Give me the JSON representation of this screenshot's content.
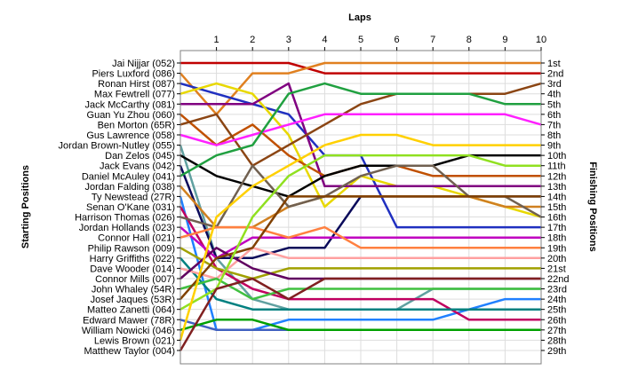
{
  "chart_data": {
    "type": "line",
    "title": "Laps",
    "ylabel_left": "Starting Positions",
    "ylabel_right": "Finishing Positions",
    "x": [
      0,
      1,
      2,
      3,
      4,
      5,
      6,
      7,
      8,
      9,
      10
    ],
    "laps": [
      "1",
      "2",
      "3",
      "4",
      "5",
      "6",
      "7",
      "8",
      "9",
      "10"
    ],
    "ylim": [
      1,
      29
    ],
    "grid": true,
    "drivers": [
      "Jai Nijjar (052)",
      "Piers Luxford (086)",
      "Ronan Hirst (087)",
      "Max Fewtrell (077)",
      "Jack McCarthy (081)",
      "Guan Yu Zhou (060)",
      "Ben Morton (65R)",
      "Gus Lawrence (058)",
      "Jordan Brown-Nutley (055)",
      "Dan Zelos (045)",
      "Jack Evans (042)",
      "Daniel McAuley (041)",
      "Jordan Falding (038)",
      "Ty Newstead (27R)",
      "Senan O'Kane (031)",
      "Harrison Thomas (026)",
      "Jordan Hollands (023)",
      "Connor Hall (021)",
      "Philip Rawson (009)",
      "Harry Griffiths (022)",
      "Dave Wooder (014)",
      "Connor Mills (007)",
      "John Whaley (54R)",
      "Josef Jaques (53R)",
      "Matteo Zanetti (064)",
      "Edward Mawer (78R)",
      "William Nowicki (046)",
      "Lewis Brown (021)",
      "Matthew Taylor (004)"
    ],
    "finish_labels": [
      "1st",
      "2nd",
      "3rd",
      "4th",
      "5th",
      "6th",
      "7th",
      "8th",
      "9th",
      "10th",
      "11th",
      "12th",
      "13th",
      "14th",
      "15th",
      "16th",
      "17th",
      "18th",
      "19th",
      "20th",
      "21st",
      "22nd",
      "23rd",
      "24th",
      "25th",
      "26th",
      "27th",
      "28th",
      "29th"
    ],
    "series": [
      {
        "color": "#c00000",
        "values": [
          1,
          1,
          1,
          1,
          2,
          2,
          2,
          2,
          2,
          2,
          2
        ]
      },
      {
        "color": "#e08020",
        "values": [
          2,
          6,
          2,
          2,
          1,
          1,
          1,
          1,
          1,
          1,
          1
        ]
      },
      {
        "color": "#2030c0",
        "values": [
          3,
          4,
          5,
          6,
          10,
          10,
          17,
          17,
          17,
          17,
          17
        ]
      },
      {
        "color": "#e8d800",
        "values": [
          4,
          3,
          4,
          8,
          15,
          12,
          13,
          13,
          14,
          15,
          16
        ]
      },
      {
        "color": "#800080",
        "values": [
          5,
          5,
          5,
          3,
          13,
          13,
          13,
          13,
          13,
          13,
          13
        ]
      },
      {
        "color": "#c05000",
        "values": [
          6,
          9,
          7,
          10,
          12,
          11,
          11,
          12,
          12,
          12,
          12
        ]
      },
      {
        "color": "#8b4513",
        "values": [
          7,
          6,
          11,
          9,
          7,
          5,
          4,
          4,
          4,
          4,
          3
        ]
      },
      {
        "color": "#ff20ff",
        "values": [
          8,
          9,
          8,
          7,
          6,
          6,
          6,
          6,
          6,
          6,
          7
        ]
      },
      {
        "color": "#60a0a0",
        "values": [
          9,
          20,
          24,
          25,
          25,
          25,
          25,
          23,
          23,
          23,
          23
        ]
      },
      {
        "color": "#000000",
        "values": [
          10,
          12,
          13,
          14,
          12,
          11,
          11,
          11,
          10,
          10,
          10
        ]
      },
      {
        "color": "#0a0a5a",
        "values": [
          11,
          20,
          20,
          19,
          19,
          14,
          14,
          14,
          14,
          14,
          14
        ]
      },
      {
        "color": "#20a040",
        "values": [
          12,
          10,
          9,
          4,
          3,
          4,
          4,
          4,
          4,
          5,
          5
        ]
      },
      {
        "color": "#d08020",
        "values": [
          13,
          17,
          17,
          15,
          14,
          14,
          14,
          14,
          14,
          15,
          15
        ]
      },
      {
        "color": "#2080ff",
        "values": [
          14,
          27,
          27,
          26,
          26,
          26,
          26,
          26,
          25,
          24,
          24
        ]
      },
      {
        "color": "#c00060",
        "values": [
          15,
          21,
          23,
          24,
          24,
          24,
          24,
          24,
          26,
          26,
          26
        ]
      },
      {
        "color": "#706050",
        "values": [
          16,
          17,
          11,
          15,
          14,
          12,
          11,
          11,
          14,
          14,
          16
        ]
      },
      {
        "color": "#c000c0",
        "values": [
          17,
          20,
          18,
          18,
          18,
          18,
          18,
          18,
          18,
          18,
          18
        ]
      },
      {
        "color": "#ff8040",
        "values": [
          18,
          17,
          17,
          18,
          17,
          19,
          19,
          19,
          19,
          19,
          19
        ]
      },
      {
        "color": "#a0a000",
        "values": [
          19,
          21,
          22,
          21,
          21,
          21,
          21,
          21,
          21,
          21,
          21
        ]
      },
      {
        "color": "#008080",
        "values": [
          20,
          24,
          25,
          25,
          25,
          25,
          25,
          25,
          25,
          25,
          25
        ]
      },
      {
        "color": "#ffa0a0",
        "values": [
          21,
          22,
          19,
          20,
          20,
          20,
          20,
          20,
          20,
          20,
          20
        ]
      },
      {
        "color": "#600060",
        "values": [
          22,
          19,
          21,
          22,
          22,
          22,
          22,
          22,
          22,
          22,
          22
        ]
      },
      {
        "color": "#40c040",
        "values": [
          23,
          22,
          24,
          23,
          23,
          23,
          23,
          23,
          23,
          23,
          23
        ]
      },
      {
        "color": "#804000",
        "values": [
          24,
          20,
          19,
          14,
          14,
          14,
          14,
          14,
          14,
          14,
          14
        ]
      },
      {
        "color": "#90e020",
        "values": [
          25,
          23,
          16,
          12,
          10,
          10,
          10,
          10,
          10,
          11,
          11
        ]
      },
      {
        "color": "#4060c0",
        "values": [
          26,
          27,
          27,
          27,
          27,
          27,
          27,
          27,
          27,
          27,
          27
        ]
      },
      {
        "color": "#00a000",
        "values": [
          27,
          26,
          26,
          27,
          27,
          27,
          27,
          27,
          27,
          27,
          27
        ]
      },
      {
        "color": "#ffd000",
        "values": [
          28,
          16,
          13,
          11,
          9,
          8,
          8,
          9,
          9,
          9,
          9
        ]
      },
      {
        "color": "#802020",
        "values": [
          29,
          23,
          22,
          24,
          22,
          22,
          22,
          22,
          22,
          22,
          22
        ]
      }
    ]
  }
}
